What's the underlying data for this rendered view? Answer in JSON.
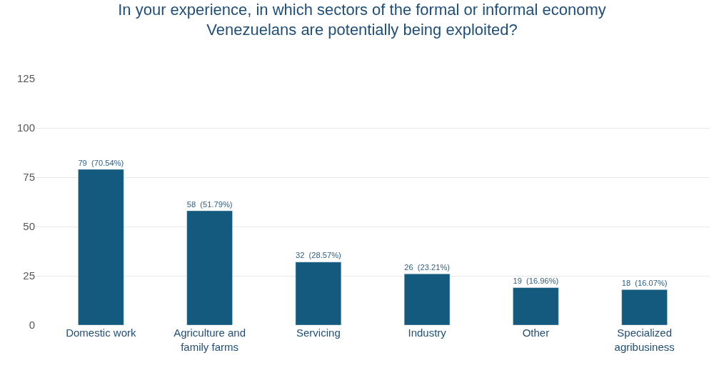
{
  "chart_data": {
    "type": "bar",
    "title": "In your experience, in which sectors of the formal or informal economy\nVenezuelans are potentially being exploited?",
    "categories": [
      "Domestic work",
      "Agriculture and\nfamily farms",
      "Servicing",
      "Industry",
      "Other",
      "Specialized\nagribusiness"
    ],
    "values": [
      79,
      58,
      32,
      26,
      19,
      18
    ],
    "value_labels": [
      "79  (70.54%)",
      "58  (51.79%)",
      "32  (28.57%)",
      "26  (23.21%)",
      "19  (16.96%)",
      "18  (16.07%)"
    ],
    "color": "#135a7e",
    "ylim": [
      0,
      125
    ],
    "yticks": [
      0,
      25,
      50,
      75,
      100,
      125
    ],
    "grid": "y",
    "legend": false
  }
}
